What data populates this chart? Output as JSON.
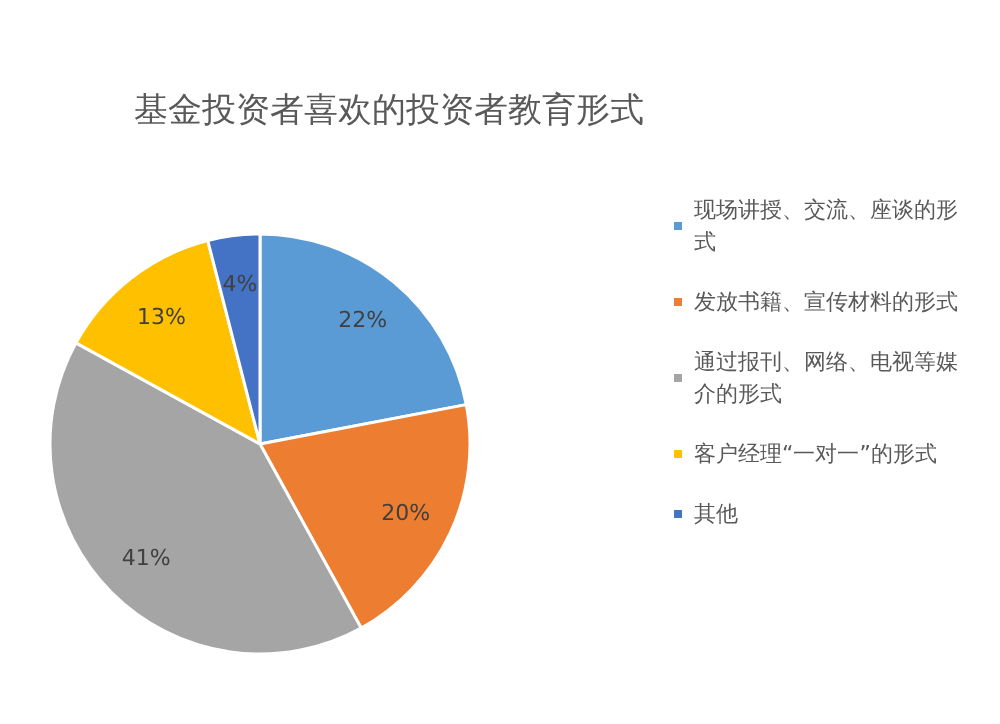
{
  "chart_data": {
    "type": "pie",
    "title": "基金投资者喜欢的投资者教育形式",
    "categories": [
      "现场讲授、交流、座谈的形式",
      "发放书籍、宣传材料的形式",
      "通过报刊、网络、电视等媒介的形式",
      "客户经理“一对一”的形式",
      "其他"
    ],
    "values": [
      22,
      20,
      41,
      13,
      4
    ],
    "colors": [
      "#5b9bd5",
      "#ed7d31",
      "#a5a5a5",
      "#ffc000",
      "#4472c4"
    ],
    "value_labels": [
      "22%",
      "20%",
      "41%",
      "13%",
      "4%"
    ],
    "legend": "right"
  }
}
